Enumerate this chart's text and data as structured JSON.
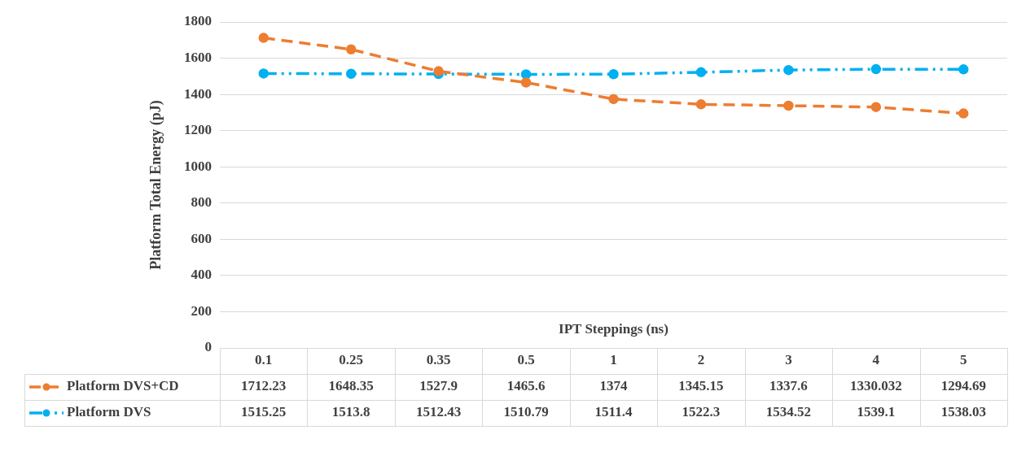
{
  "chart_data": {
    "type": "line",
    "xlabel": "IPT Steppings (ns)",
    "ylabel": "Platform Total Energy (pJ)",
    "categories": [
      "0.1",
      "0.25",
      "0.35",
      "0.5",
      "1",
      "2",
      "3",
      "4",
      "5"
    ],
    "series": [
      {
        "name": "Platform DVS+CD",
        "color": "#ed7d31",
        "line_style": "dashed",
        "values": [
          1712.23,
          1648.35,
          1527.9,
          1465.6,
          1374,
          1345.15,
          1337.6,
          1330.032,
          1294.69
        ]
      },
      {
        "name": "Platform DVS",
        "color": "#00b0f0",
        "line_style": "dotted",
        "values": [
          1515.25,
          1513.8,
          1512.43,
          1510.79,
          1511.4,
          1522.3,
          1534.52,
          1539.1,
          1538.03
        ]
      }
    ],
    "ylim": [
      0,
      1800
    ],
    "yticks": [
      0,
      200,
      400,
      600,
      800,
      1000,
      1200,
      1400,
      1600,
      1800
    ],
    "grid": "y",
    "legend": "bottom left",
    "marker": "circle",
    "data_labels": true
  }
}
